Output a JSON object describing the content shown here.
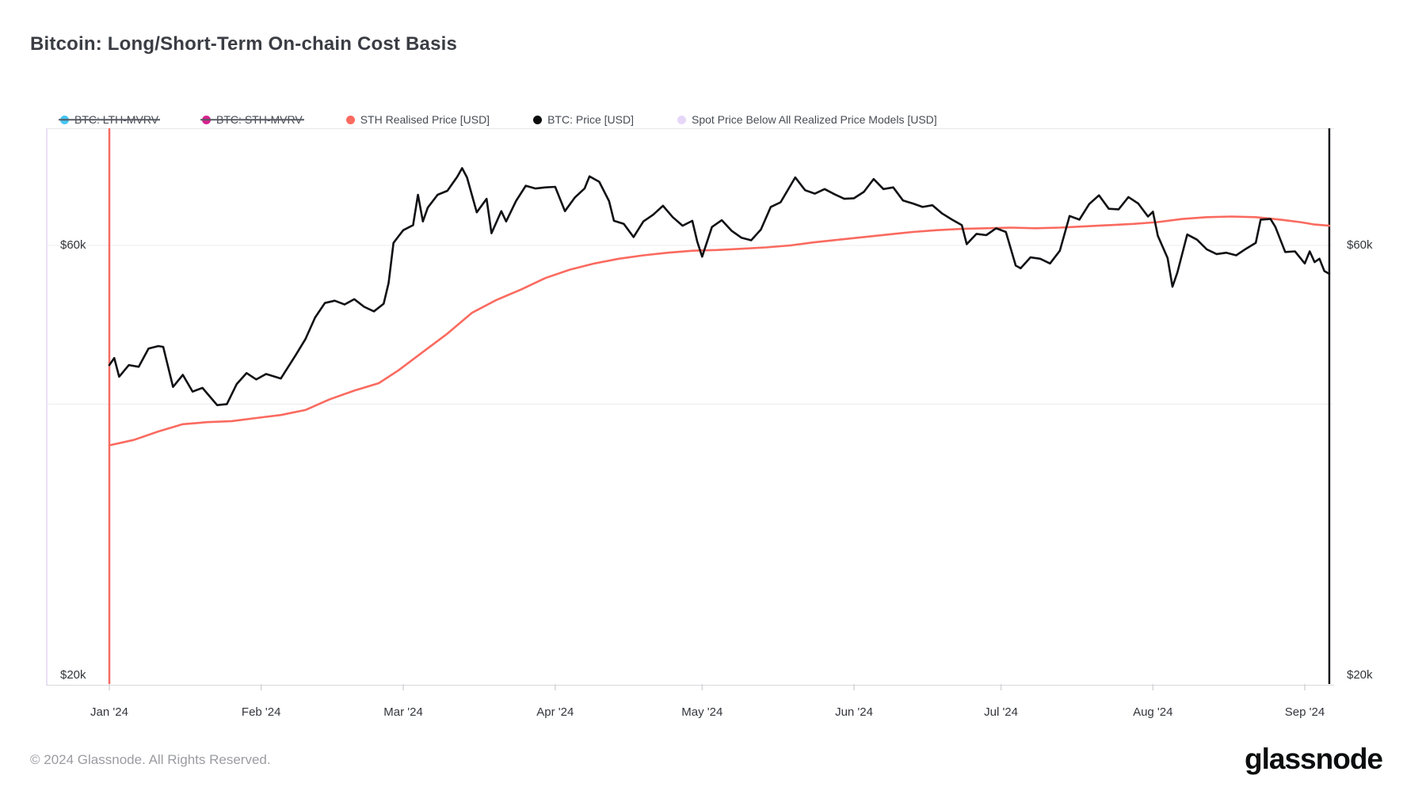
{
  "title": "Bitcoin: Long/Short-Term On-chain Cost Basis",
  "legend": {
    "items": [
      {
        "label": "BTC: LTH-MVRV",
        "color": "#45c5f5",
        "disabled": true
      },
      {
        "label": "BTC: STH-MVRV",
        "color": "#d6218f",
        "disabled": true
      },
      {
        "label": "STH Realised Price [USD]",
        "color": "#fa6a5f",
        "disabled": false
      },
      {
        "label": "BTC: Price [USD]",
        "color": "#0b0c0e",
        "disabled": false
      },
      {
        "label": "Spot Price Below All Realized Price Models [USD]",
        "color": "#e6d7f8",
        "disabled": false
      }
    ]
  },
  "footer": {
    "copyright": "© 2024 Glassnode. All Rights Reserved.",
    "logo": "glassnode"
  },
  "chart_data": {
    "type": "line",
    "title": "Bitcoin: Long/Short-Term On-chain Cost Basis",
    "x_start": "2024-01-01",
    "x_end": "2024-09-06",
    "y_axis": {
      "scale": "log",
      "unit": "USD",
      "range": [
        20000,
        78000
      ],
      "ticks": [
        {
          "label": "$60k",
          "value": 60000
        },
        {
          "label": "$20k",
          "value": 20000
        }
      ],
      "gridline_values": [
        60000,
        40000
      ]
    },
    "x_ticks": [
      {
        "label": "Jan '24",
        "date": "2024-01-01"
      },
      {
        "label": "Feb '24",
        "date": "2024-02-01"
      },
      {
        "label": "Mar '24",
        "date": "2024-03-01"
      },
      {
        "label": "Apr '24",
        "date": "2024-04-01"
      },
      {
        "label": "May '24",
        "date": "2024-05-01"
      },
      {
        "label": "Jun '24",
        "date": "2024-06-01"
      },
      {
        "label": "Jul '24",
        "date": "2024-07-01"
      },
      {
        "label": "Aug '24",
        "date": "2024-08-01"
      },
      {
        "label": "Sep '24",
        "date": "2024-09-01"
      }
    ],
    "markers": {
      "period_start": {
        "date": "2024-01-01",
        "color": "#f76b66"
      },
      "period_end": {
        "date": "2024-09-06",
        "color": "#17181b"
      }
    },
    "series": [
      {
        "name": "STH Realised Price [USD]",
        "color": "#fa6a5f",
        "width": 2.6,
        "points": [
          [
            "2024-01-01",
            36000
          ],
          [
            "2024-01-06",
            36500
          ],
          [
            "2024-01-11",
            37300
          ],
          [
            "2024-01-16",
            38000
          ],
          [
            "2024-01-21",
            38200
          ],
          [
            "2024-01-26",
            38300
          ],
          [
            "2024-01-31",
            38600
          ],
          [
            "2024-02-05",
            38900
          ],
          [
            "2024-02-10",
            39400
          ],
          [
            "2024-02-15",
            40500
          ],
          [
            "2024-02-20",
            41400
          ],
          [
            "2024-02-25",
            42200
          ],
          [
            "2024-02-29",
            43600
          ],
          [
            "2024-03-05",
            45700
          ],
          [
            "2024-03-10",
            47900
          ],
          [
            "2024-03-15",
            50500
          ],
          [
            "2024-03-20",
            52200
          ],
          [
            "2024-03-25",
            53600
          ],
          [
            "2024-03-30",
            55200
          ],
          [
            "2024-04-04",
            56400
          ],
          [
            "2024-04-09",
            57300
          ],
          [
            "2024-04-14",
            58000
          ],
          [
            "2024-04-19",
            58500
          ],
          [
            "2024-04-24",
            58900
          ],
          [
            "2024-04-29",
            59200
          ],
          [
            "2024-05-04",
            59300
          ],
          [
            "2024-05-09",
            59500
          ],
          [
            "2024-05-14",
            59700
          ],
          [
            "2024-05-19",
            60000
          ],
          [
            "2024-05-24",
            60500
          ],
          [
            "2024-05-29",
            60900
          ],
          [
            "2024-06-03",
            61300
          ],
          [
            "2024-06-08",
            61700
          ],
          [
            "2024-06-13",
            62100
          ],
          [
            "2024-06-18",
            62400
          ],
          [
            "2024-06-23",
            62600
          ],
          [
            "2024-06-28",
            62700
          ],
          [
            "2024-07-03",
            62800
          ],
          [
            "2024-07-08",
            62700
          ],
          [
            "2024-07-13",
            62800
          ],
          [
            "2024-07-18",
            63000
          ],
          [
            "2024-07-23",
            63200
          ],
          [
            "2024-07-28",
            63400
          ],
          [
            "2024-08-02",
            63700
          ],
          [
            "2024-08-07",
            64200
          ],
          [
            "2024-08-12",
            64500
          ],
          [
            "2024-08-17",
            64600
          ],
          [
            "2024-08-22",
            64500
          ],
          [
            "2024-08-27",
            64100
          ],
          [
            "2024-08-31",
            63700
          ],
          [
            "2024-09-03",
            63300
          ],
          [
            "2024-09-06",
            63100
          ]
        ]
      },
      {
        "name": "BTC: Price [USD]",
        "color": "#101114",
        "width": 2.6,
        "points": [
          [
            "2024-01-01",
            44200
          ],
          [
            "2024-01-02",
            45000
          ],
          [
            "2024-01-03",
            42900
          ],
          [
            "2024-01-05",
            44200
          ],
          [
            "2024-01-07",
            44000
          ],
          [
            "2024-01-09",
            46100
          ],
          [
            "2024-01-11",
            46400
          ],
          [
            "2024-01-12",
            46300
          ],
          [
            "2024-01-14",
            41800
          ],
          [
            "2024-01-16",
            43100
          ],
          [
            "2024-01-18",
            41300
          ],
          [
            "2024-01-20",
            41700
          ],
          [
            "2024-01-23",
            39900
          ],
          [
            "2024-01-25",
            40000
          ],
          [
            "2024-01-27",
            42100
          ],
          [
            "2024-01-29",
            43300
          ],
          [
            "2024-01-31",
            42600
          ],
          [
            "2024-02-02",
            43200
          ],
          [
            "2024-02-05",
            42700
          ],
          [
            "2024-02-08",
            45300
          ],
          [
            "2024-02-10",
            47200
          ],
          [
            "2024-02-12",
            49900
          ],
          [
            "2024-02-14",
            51800
          ],
          [
            "2024-02-16",
            52100
          ],
          [
            "2024-02-18",
            51600
          ],
          [
            "2024-02-20",
            52300
          ],
          [
            "2024-02-22",
            51300
          ],
          [
            "2024-02-24",
            50700
          ],
          [
            "2024-02-26",
            51700
          ],
          [
            "2024-02-27",
            54500
          ],
          [
            "2024-02-28",
            60400
          ],
          [
            "2024-02-29",
            61400
          ],
          [
            "2024-03-01",
            62400
          ],
          [
            "2024-03-03",
            63200
          ],
          [
            "2024-03-04",
            68300
          ],
          [
            "2024-03-05",
            63800
          ],
          [
            "2024-03-06",
            66100
          ],
          [
            "2024-03-08",
            68300
          ],
          [
            "2024-03-10",
            69000
          ],
          [
            "2024-03-12",
            71500
          ],
          [
            "2024-03-13",
            73100
          ],
          [
            "2024-03-14",
            71400
          ],
          [
            "2024-03-16",
            65300
          ],
          [
            "2024-03-18",
            67600
          ],
          [
            "2024-03-19",
            61900
          ],
          [
            "2024-03-21",
            65500
          ],
          [
            "2024-03-22",
            63800
          ],
          [
            "2024-03-24",
            67200
          ],
          [
            "2024-03-26",
            69900
          ],
          [
            "2024-03-28",
            69400
          ],
          [
            "2024-03-30",
            69600
          ],
          [
            "2024-04-01",
            69700
          ],
          [
            "2024-04-03",
            65500
          ],
          [
            "2024-04-05",
            67800
          ],
          [
            "2024-04-07",
            69400
          ],
          [
            "2024-04-08",
            71600
          ],
          [
            "2024-04-10",
            70600
          ],
          [
            "2024-04-12",
            67200
          ],
          [
            "2024-04-13",
            63900
          ],
          [
            "2024-04-15",
            63400
          ],
          [
            "2024-04-17",
            61300
          ],
          [
            "2024-04-19",
            63800
          ],
          [
            "2024-04-21",
            64900
          ],
          [
            "2024-04-23",
            66400
          ],
          [
            "2024-04-25",
            64500
          ],
          [
            "2024-04-27",
            63100
          ],
          [
            "2024-04-29",
            63900
          ],
          [
            "2024-04-30",
            60600
          ],
          [
            "2024-05-01",
            58300
          ],
          [
            "2024-05-03",
            62900
          ],
          [
            "2024-05-05",
            64000
          ],
          [
            "2024-05-07",
            62300
          ],
          [
            "2024-05-09",
            61200
          ],
          [
            "2024-05-11",
            60800
          ],
          [
            "2024-05-13",
            62500
          ],
          [
            "2024-05-15",
            66200
          ],
          [
            "2024-05-17",
            67000
          ],
          [
            "2024-05-20",
            71400
          ],
          [
            "2024-05-22",
            69100
          ],
          [
            "2024-05-24",
            68500
          ],
          [
            "2024-05-26",
            69300
          ],
          [
            "2024-05-28",
            68400
          ],
          [
            "2024-05-30",
            67600
          ],
          [
            "2024-06-01",
            67700
          ],
          [
            "2024-06-03",
            68800
          ],
          [
            "2024-06-05",
            71100
          ],
          [
            "2024-06-07",
            69300
          ],
          [
            "2024-06-09",
            69600
          ],
          [
            "2024-06-11",
            67300
          ],
          [
            "2024-06-13",
            66800
          ],
          [
            "2024-06-15",
            66200
          ],
          [
            "2024-06-17",
            66500
          ],
          [
            "2024-06-19",
            65100
          ],
          [
            "2024-06-21",
            64100
          ],
          [
            "2024-06-23",
            63200
          ],
          [
            "2024-06-24",
            60200
          ],
          [
            "2024-06-26",
            61800
          ],
          [
            "2024-06-28",
            61600
          ],
          [
            "2024-06-30",
            62700
          ],
          [
            "2024-07-02",
            62100
          ],
          [
            "2024-07-04",
            57000
          ],
          [
            "2024-07-05",
            56600
          ],
          [
            "2024-07-07",
            58200
          ],
          [
            "2024-07-09",
            58000
          ],
          [
            "2024-07-11",
            57300
          ],
          [
            "2024-07-13",
            59200
          ],
          [
            "2024-07-15",
            64700
          ],
          [
            "2024-07-17",
            64100
          ],
          [
            "2024-07-19",
            66700
          ],
          [
            "2024-07-21",
            68200
          ],
          [
            "2024-07-23",
            65900
          ],
          [
            "2024-07-25",
            65800
          ],
          [
            "2024-07-27",
            67900
          ],
          [
            "2024-07-29",
            66800
          ],
          [
            "2024-07-31",
            64600
          ],
          [
            "2024-08-01",
            65400
          ],
          [
            "2024-08-02",
            61500
          ],
          [
            "2024-08-04",
            58100
          ],
          [
            "2024-08-05",
            54000
          ],
          [
            "2024-08-06",
            56000
          ],
          [
            "2024-08-08",
            61700
          ],
          [
            "2024-08-10",
            60900
          ],
          [
            "2024-08-12",
            59400
          ],
          [
            "2024-08-14",
            58700
          ],
          [
            "2024-08-16",
            58900
          ],
          [
            "2024-08-18",
            58500
          ],
          [
            "2024-08-20",
            59500
          ],
          [
            "2024-08-22",
            60400
          ],
          [
            "2024-08-23",
            64100
          ],
          [
            "2024-08-25",
            64200
          ],
          [
            "2024-08-26",
            62900
          ],
          [
            "2024-08-28",
            59000
          ],
          [
            "2024-08-30",
            59100
          ],
          [
            "2024-09-01",
            57300
          ],
          [
            "2024-09-02",
            59100
          ],
          [
            "2024-09-03",
            57500
          ],
          [
            "2024-09-04",
            58000
          ],
          [
            "2024-09-05",
            56200
          ],
          [
            "2024-09-06",
            55800
          ]
        ]
      }
    ]
  }
}
